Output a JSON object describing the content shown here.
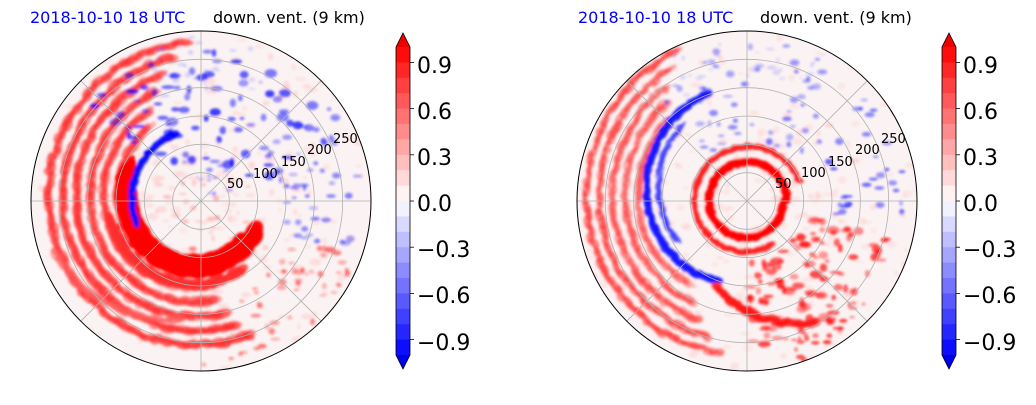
{
  "chart_data": [
    {
      "type": "heatmap",
      "projection": "polar",
      "timestamp": "2018-10-10 18 UTC",
      "timestamp_color": "#0000ff",
      "title": "down. vent. (9 km)",
      "radial_ticks": [
        "50",
        "100",
        "150",
        "200",
        "250"
      ],
      "radial_tick_values": [
        50,
        100,
        150,
        200,
        250
      ],
      "rmax": 300,
      "grid": true,
      "colorbar": {
        "ticks": [
          "0.9",
          "0.6",
          "0.3",
          "0.0",
          "−0.3",
          "−0.6",
          "−0.9"
        ],
        "tick_values": [
          0.9,
          0.6,
          0.3,
          0.0,
          -0.3,
          -0.6,
          -0.9
        ],
        "vmin": -1.0,
        "vmax": 1.0,
        "extend": "both",
        "colors": {
          "negative": "#0000ff",
          "zero": "#ffffff",
          "positive": "#ff0000"
        }
      }
    },
    {
      "type": "heatmap",
      "projection": "polar",
      "timestamp": "2018-10-10 18 UTC",
      "timestamp_color": "#0000ff",
      "title": "down. vent. (9 km)",
      "radial_ticks": [
        "50",
        "100",
        "150",
        "200",
        "250"
      ],
      "radial_tick_values": [
        50,
        100,
        150,
        200,
        250
      ],
      "rmax": 300,
      "grid": true,
      "colorbar": {
        "ticks": [
          "0.9",
          "0.6",
          "0.3",
          "0.0",
          "−0.3",
          "−0.6",
          "−0.9"
        ],
        "tick_values": [
          0.9,
          0.6,
          0.3,
          0.0,
          -0.3,
          -0.6,
          -0.9
        ],
        "vmin": -1.0,
        "vmax": 1.0,
        "extend": "both",
        "colors": {
          "negative": "#0000ff",
          "zero": "#ffffff",
          "positive": "#ff0000"
        }
      }
    }
  ]
}
